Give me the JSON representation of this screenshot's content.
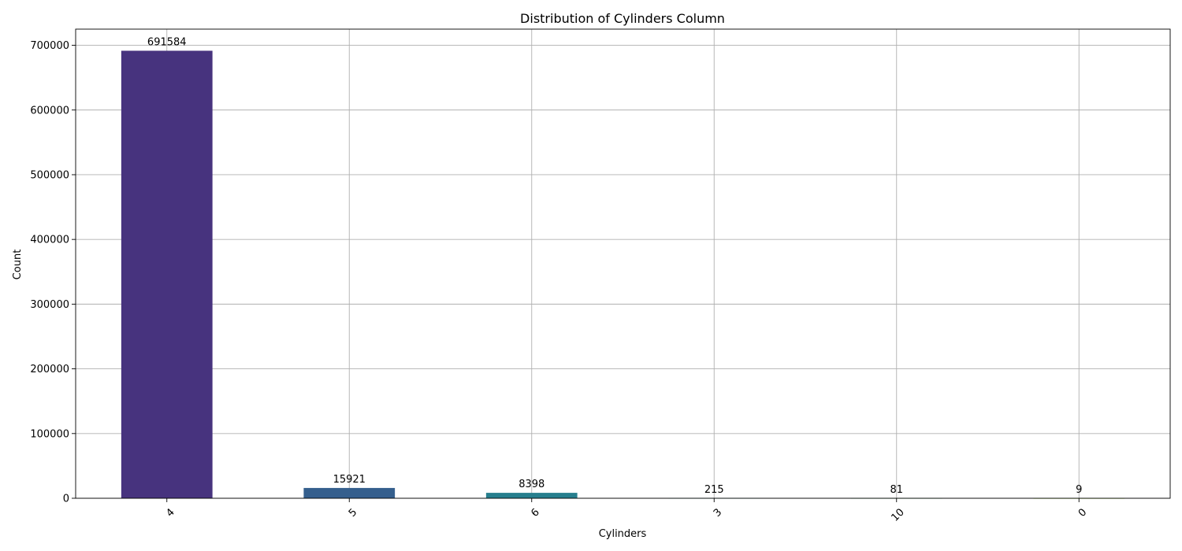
{
  "chart_data": {
    "type": "bar",
    "title": "Distribution of Cylinders Column",
    "xlabel": "Cylinders",
    "ylabel": "Count",
    "categories": [
      "4",
      "5",
      "6",
      "3",
      "10",
      "0"
    ],
    "values": [
      691584,
      15921,
      8398,
      215,
      81,
      9
    ],
    "value_labels": [
      "691584",
      "15921",
      "8398",
      "215",
      "81",
      "9"
    ],
    "colors": [
      "#47337e",
      "#355f8d",
      "#277f8e",
      "#1fa088",
      "#4ac16d",
      "#a0da39"
    ],
    "ylim": [
      0,
      725000
    ],
    "yticks": [
      0,
      100000,
      200000,
      300000,
      400000,
      500000,
      600000,
      700000
    ],
    "ytick_labels": [
      "0",
      "100000",
      "200000",
      "300000",
      "400000",
      "500000",
      "600000",
      "700000"
    ],
    "x_tick_rotation": 45,
    "grid": true
  }
}
